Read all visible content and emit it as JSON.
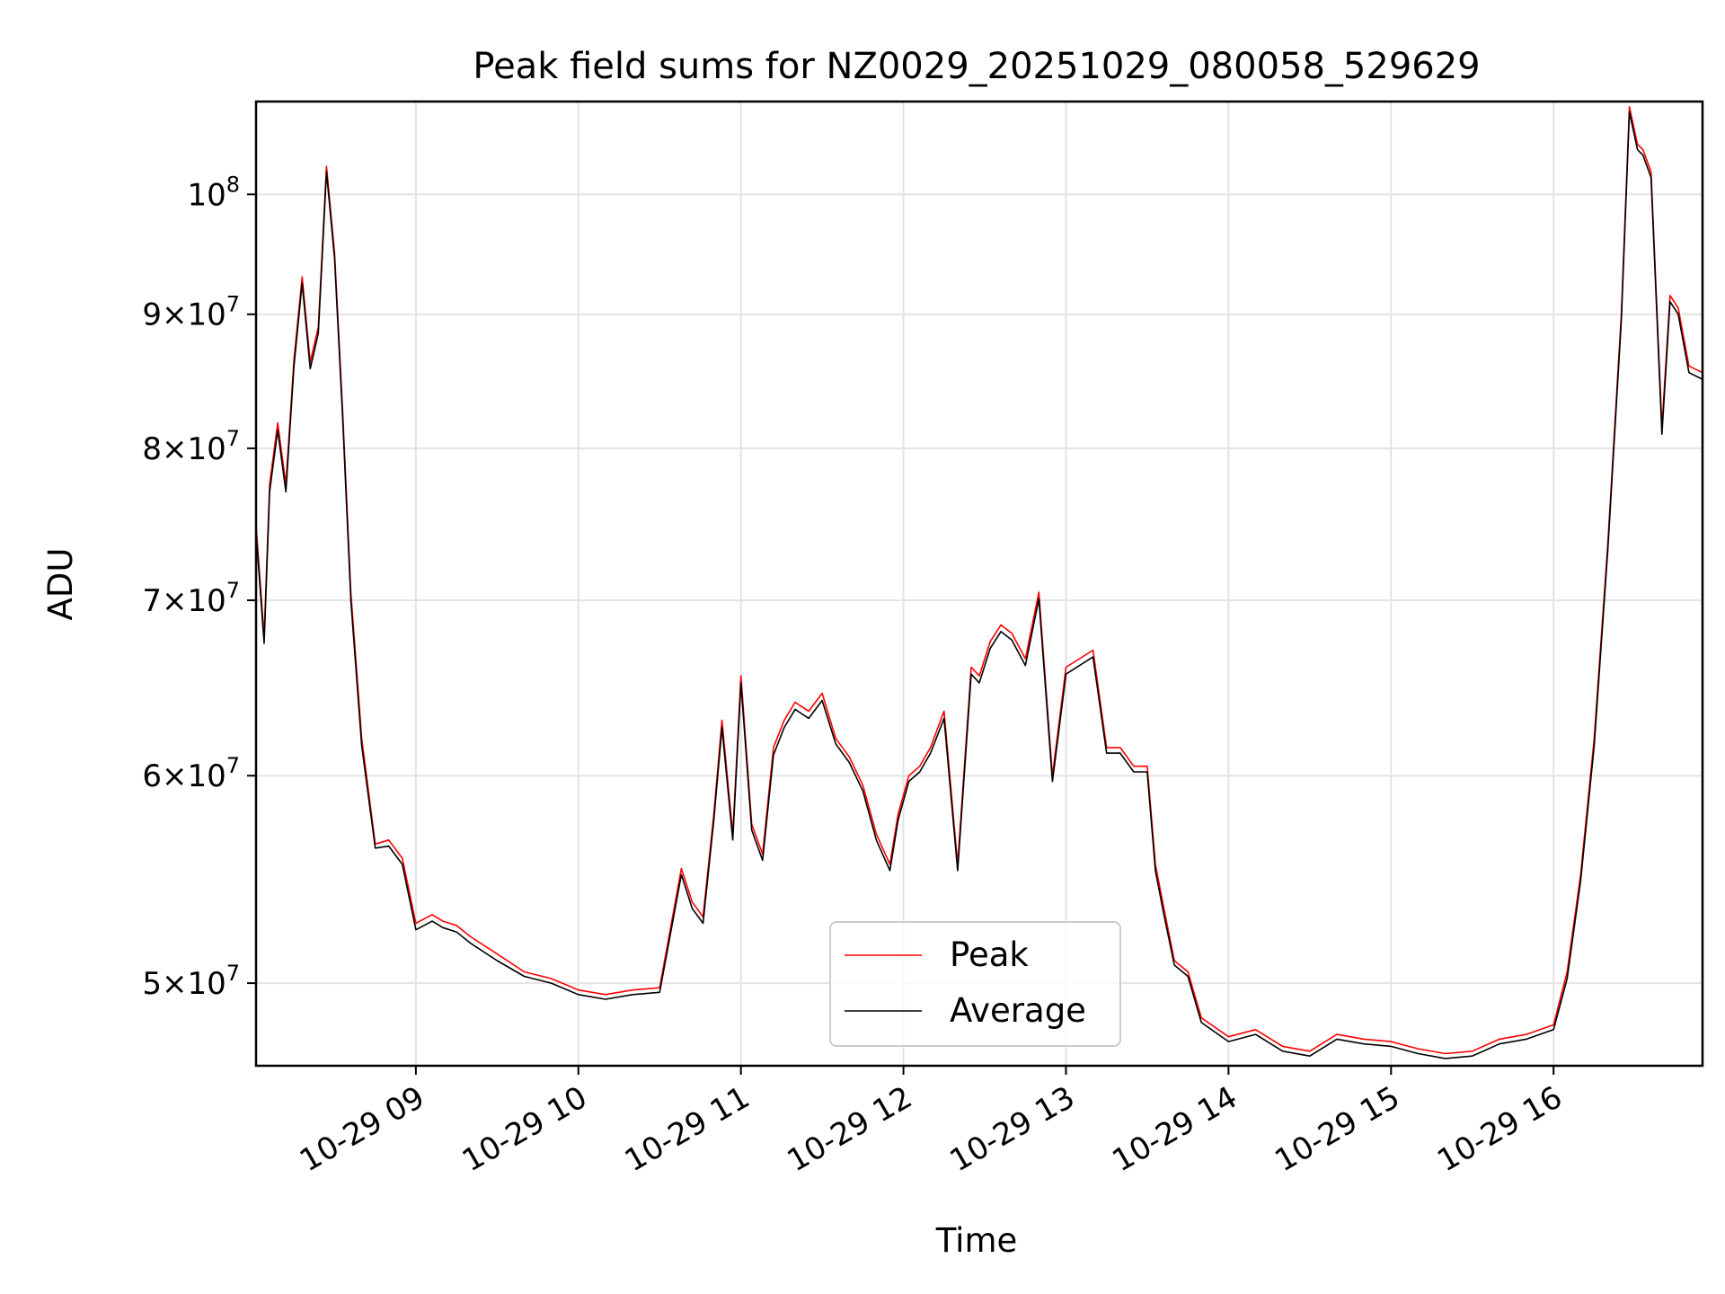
{
  "chart_data": {
    "type": "line",
    "title": "Peak field sums for NZ0029_20251029_080058_529629",
    "xlabel": "Time",
    "ylabel": "ADU",
    "y_scale": "log",
    "ylim": [
      46500000,
      108500000
    ],
    "xlim": [
      "2025-10-29 08:01",
      "2025-10-29 16:55"
    ],
    "x_ticks": [
      "10-29 09",
      "10-29 10",
      "10-29 11",
      "10-29 12",
      "10-29 13",
      "10-29 14",
      "10-29 15",
      "10-29 16"
    ],
    "y_ticks": [
      {
        "value": 50000000,
        "mant": "5",
        "exp": "7"
      },
      {
        "value": 60000000,
        "mant": "6",
        "exp": "7"
      },
      {
        "value": 70000000,
        "mant": "7",
        "exp": "7"
      },
      {
        "value": 80000000,
        "mant": "8",
        "exp": "7"
      },
      {
        "value": 90000000,
        "mant": "9",
        "exp": "7"
      },
      {
        "value": 100000000,
        "mant": "",
        "exp": "8"
      }
    ],
    "grid": true,
    "legend_position": "bottom-center",
    "colors": {
      "Peak": "#ff0000",
      "Average": "#000000"
    },
    "x": [
      "08:01",
      "08:04",
      "08:06",
      "08:09",
      "08:12",
      "08:15",
      "08:18",
      "08:21",
      "08:24",
      "08:27",
      "08:30",
      "08:33",
      "08:36",
      "08:40",
      "08:45",
      "08:50",
      "08:55",
      "09:00",
      "09:03",
      "09:06",
      "09:10",
      "09:15",
      "09:20",
      "09:30",
      "09:40",
      "09:50",
      "10:00",
      "10:10",
      "10:20",
      "10:30",
      "10:38",
      "10:42",
      "10:46",
      "10:50",
      "10:53",
      "10:57",
      "11:00",
      "11:04",
      "11:08",
      "11:12",
      "11:16",
      "11:20",
      "11:25",
      "11:30",
      "11:35",
      "11:40",
      "11:45",
      "11:50",
      "11:55",
      "11:58",
      "12:02",
      "12:06",
      "12:10",
      "12:15",
      "12:20",
      "12:25",
      "12:28",
      "12:32",
      "12:36",
      "12:40",
      "12:45",
      "12:50",
      "12:55",
      "13:00",
      "13:05",
      "13:10",
      "13:15",
      "13:20",
      "13:25",
      "13:30",
      "13:33",
      "13:36",
      "13:40",
      "13:45",
      "13:50",
      "14:00",
      "14:10",
      "14:20",
      "14:30",
      "14:40",
      "14:50",
      "15:00",
      "15:10",
      "15:20",
      "15:30",
      "15:40",
      "15:50",
      "16:00",
      "16:05",
      "16:10",
      "16:15",
      "16:20",
      "16:25",
      "16:28",
      "16:31",
      "16:33",
      "16:36",
      "16:40",
      "16:43",
      "16:46",
      "16:50",
      "16:55"
    ],
    "series": [
      {
        "name": "Peak",
        "values": [
          74800000,
          67800000,
          77500000,
          81800000,
          77500000,
          86500000,
          93000000,
          86300000,
          89000000,
          102500000,
          95000000,
          82500000,
          70500000,
          62000000,
          56500000,
          56700000,
          55800000,
          52700000,
          52900000,
          53100000,
          52800000,
          52600000,
          52100000,
          51300000,
          50500000,
          50200000,
          49700000,
          49500000,
          49700000,
          49800000,
          55300000,
          53700000,
          53000000,
          58000000,
          63000000,
          57000000,
          65500000,
          57500000,
          56000000,
          61500000,
          63000000,
          64000000,
          63500000,
          64500000,
          62000000,
          61000000,
          59500000,
          57000000,
          55500000,
          58000000,
          60000000,
          60500000,
          61500000,
          63500000,
          55500000,
          66000000,
          65500000,
          67500000,
          68500000,
          68000000,
          66500000,
          70500000,
          60000000,
          66000000,
          66500000,
          67000000,
          61500000,
          61500000,
          60500000,
          60500000,
          55500000,
          53500000,
          51000000,
          50500000,
          48500000,
          47700000,
          48000000,
          47300000,
          47100000,
          47800000,
          47600000,
          47500000,
          47200000,
          47000000,
          47100000,
          47600000,
          47800000,
          48200000,
          50500000,
          55000000,
          62000000,
          73500000,
          90000000,
          108000000,
          104500000,
          104000000,
          102000000,
          81500000,
          91500000,
          90500000,
          86000000,
          85500000
        ]
      },
      {
        "name": "Average",
        "values": [
          74300000,
          67400000,
          77000000,
          81300000,
          77000000,
          86000000,
          92500000,
          85800000,
          88500000,
          102000000,
          94500000,
          82000000,
          70000000,
          61600000,
          56300000,
          56400000,
          55500000,
          52400000,
          52600000,
          52800000,
          52500000,
          52300000,
          51800000,
          51000000,
          50300000,
          50000000,
          49500000,
          49300000,
          49500000,
          49600000,
          55000000,
          53400000,
          52700000,
          57700000,
          62600000,
          56700000,
          65100000,
          57200000,
          55700000,
          61100000,
          62600000,
          63600000,
          63100000,
          64100000,
          61700000,
          60700000,
          59200000,
          56700000,
          55200000,
          57700000,
          59700000,
          60200000,
          61200000,
          63100000,
          55200000,
          65600000,
          65100000,
          67100000,
          68100000,
          67600000,
          66100000,
          70100000,
          59700000,
          65600000,
          66100000,
          66600000,
          61200000,
          61200000,
          60200000,
          60200000,
          55200000,
          53200000,
          50800000,
          50300000,
          48300000,
          47500000,
          47800000,
          47100000,
          46900000,
          47600000,
          47400000,
          47300000,
          47000000,
          46800000,
          46900000,
          47400000,
          47600000,
          48000000,
          50200000,
          54700000,
          61600000,
          73100000,
          89500000,
          107500000,
          104000000,
          103500000,
          101500000,
          81000000,
          91000000,
          90000000,
          85500000,
          85000000
        ]
      }
    ]
  }
}
